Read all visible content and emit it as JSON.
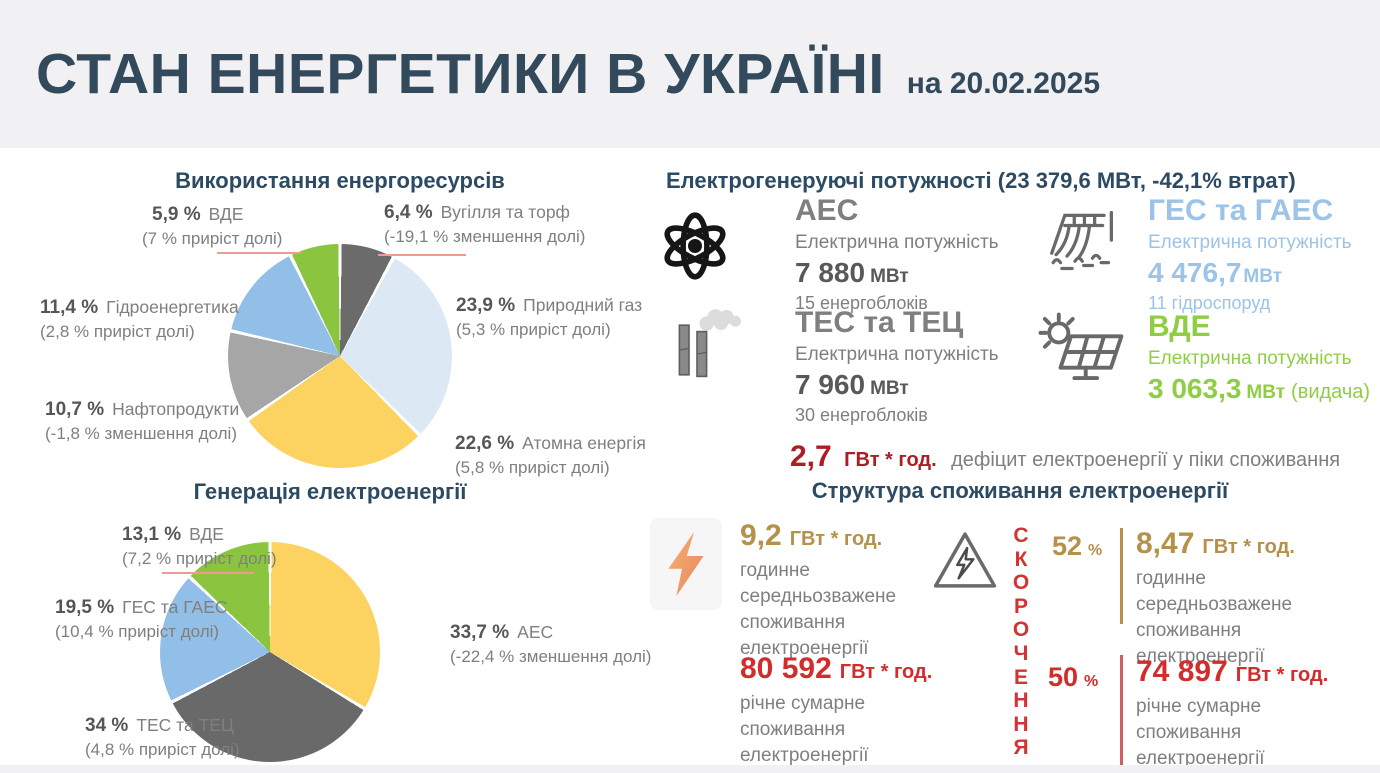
{
  "header": {
    "title": "СТАН ЕНЕРГЕТИКИ В УКРАЇНІ",
    "date": "на 20.02.2025"
  },
  "chart_data": [
    {
      "type": "pie",
      "title": "Використання енергоресурсів",
      "legend_position": "around",
      "slices": [
        {
          "label": "Вугілля та торф",
          "pct": "6,4 %",
          "value": 6.4,
          "note": "(-19,1 % зменшення долі)",
          "color": "#6b6b6b"
        },
        {
          "label": "Природний газ",
          "pct": "23,9 %",
          "value": 23.9,
          "note": "(5,3 % приріст долі)",
          "color": "#dce9f5"
        },
        {
          "label": "Атомна енергія",
          "pct": "22,6 %",
          "value": 22.6,
          "note": "(5,8 % приріст долі)",
          "color": "#fcd361"
        },
        {
          "label": "Нафтопродукти",
          "pct": "10,7 %",
          "value": 10.7,
          "note": "(-1,8 % зменшення долі)",
          "color": "#a6a6a6"
        },
        {
          "label": "Гідроенергетика",
          "pct": "11,4 %",
          "value": 11.4,
          "note": "(2,8 % приріст долі)",
          "color": "#92bfe8"
        },
        {
          "label": "ВДЕ",
          "pct": "5,9 %",
          "value": 5.9,
          "note": "(7 % приріст долі)",
          "color": "#8bc540"
        }
      ]
    },
    {
      "type": "pie",
      "title": "Генерація електроенергії",
      "legend_position": "around",
      "slices": [
        {
          "label": "АЕС",
          "pct": "33,7 %",
          "value": 33.7,
          "note": "(-22,4 % зменшення долі)",
          "color": "#fcd361"
        },
        {
          "label": "ТЕС та ТЕЦ",
          "pct": "34 %",
          "value": 34,
          "note": "(4,8 % приріст долі)",
          "color": "#696969"
        },
        {
          "label": "ГЕС та ГАЕС",
          "pct": "19,5 %",
          "value": 19.5,
          "note": "(10,4 % приріст долі)",
          "color": "#92bfe8"
        },
        {
          "label": "ВДЕ",
          "pct": "13,1 %",
          "value": 13.1,
          "note": "(7,2 % приріст долі)",
          "color": "#8bc540"
        }
      ]
    }
  ],
  "capacities": {
    "title": "Електрогенеруючі потужності (23 379,6 МВт, -42,1% втрат)",
    "blocks": [
      {
        "name": "АЕС",
        "power_label": "Електрична потужність",
        "value": "7 880",
        "unit": "МВт",
        "sub": "15 енергоблоків",
        "icon": "atom-icon",
        "accent": "#7f7f7f"
      },
      {
        "name": "ГЕС та ГАЕС",
        "power_label": "Електрична потужність",
        "value": "4 476,7",
        "unit": "МВт",
        "sub": "11 гідроспоруд",
        "icon": "dam-icon",
        "accent": "#9cc3e8"
      },
      {
        "name": "ТЕС та ТЕЦ",
        "power_label": "Електрична потужність",
        "value": "7 960",
        "unit": "МВт",
        "sub": "30 енергоблоків",
        "icon": "chimney-icon",
        "accent": "#7f7f7f"
      },
      {
        "name": "ВДЕ",
        "power_label": "Електрична потужність",
        "value": "3 063,3",
        "unit": "МВт",
        "suffix": "(видача)",
        "icon": "solar-icon",
        "accent": "#8fce44"
      }
    ]
  },
  "deficit": {
    "value": "2,7",
    "unit": "ГВт * год.",
    "text": "дефіцит електроенергії у піки споживання"
  },
  "consumption": {
    "title": "Структура споживання електроенергії",
    "reduction_word": "СКОРОЧЕННЯ",
    "hourly_left": {
      "value": "9,2",
      "unit": "ГВт * год.",
      "desc": "годинне середньозважене споживання електроенергії"
    },
    "hourly_right": {
      "percent": "52",
      "percent_sign": "%",
      "value": "8,47",
      "unit": "ГВт * год.",
      "desc": "годинне середньозважене споживання електроенергії"
    },
    "annual_left": {
      "value": "80 592",
      "unit": "ГВт * год.",
      "desc": "річне  сумарне споживання електроенергії"
    },
    "annual_right": {
      "percent": "50",
      "percent_sign": "%",
      "value": "74 897",
      "unit": "ГВт * год.",
      "desc": "річне  сумарне споживання електроенергії"
    }
  },
  "icons": {
    "atom-icon": "⚛",
    "chimney-icon": "🏭",
    "dam-icon": "🌊",
    "solar-icon": "🔆",
    "lightning-icon": "⚡",
    "high-voltage-warning-icon": "⚠"
  },
  "colors": {
    "header_bg": "#f1f1f3",
    "navy": "#2d4a63",
    "body_gray": "#7f7f7f",
    "dark_gray": "#595959",
    "red": "#d22c2c",
    "dark_red": "#ac1e24",
    "gold": "#b5914b",
    "light_blue": "#9cc3e8",
    "green": "#8fce44",
    "underline_red": "#f19a93"
  }
}
